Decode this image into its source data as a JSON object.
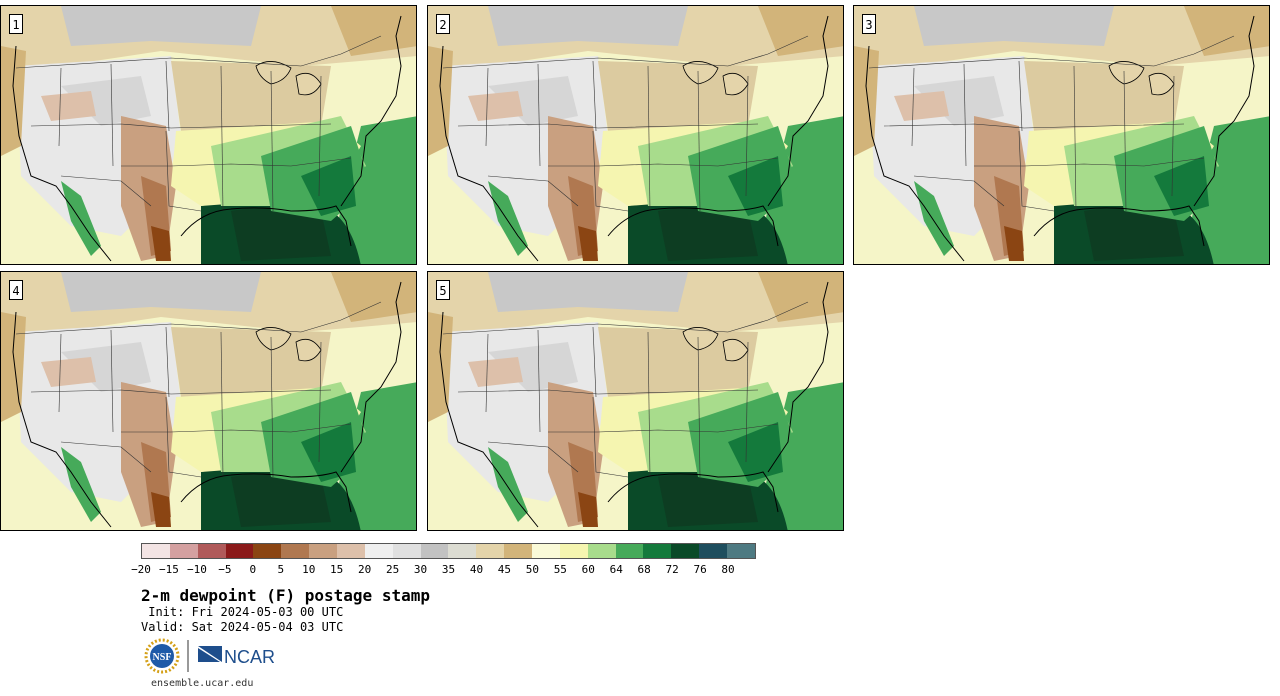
{
  "panels": [
    {
      "label": "1"
    },
    {
      "label": "2"
    },
    {
      "label": "3"
    },
    {
      "label": "4"
    },
    {
      "label": "5"
    }
  ],
  "colorbar": {
    "colors": [
      "#f3e4e4",
      "#d4a0a0",
      "#b05a5a",
      "#8b1a1a",
      "#8b4513",
      "#b07850",
      "#c9a080",
      "#ddc0aa",
      "#efefef",
      "#e0e0e0",
      "#c2c2c2",
      "#dcdcd2",
      "#e4d4aa",
      "#d2b47a",
      "#fafad8",
      "#f5f5b0",
      "#a8dc8c",
      "#46aa5a",
      "#147a3c",
      "#0a4a28",
      "#1e4e5e",
      "#4e7a82"
    ],
    "ticks": [
      "−20",
      "−15",
      "−10",
      "−5",
      "0",
      "5",
      "10",
      "15",
      "20",
      "25",
      "30",
      "35",
      "40",
      "45",
      "50",
      "55",
      "60",
      "64",
      "68",
      "72",
      "76",
      "80"
    ]
  },
  "title": "2-m dewpoint (F) postage stamp",
  "init": " Init: Fri 2024-05-03 00 UTC",
  "valid": "Valid: Sat 2024-05-04 03 UTC",
  "logos": {
    "nsf": "NSF",
    "ncar": "NCAR"
  },
  "url": "ensemble.ucar.edu"
}
